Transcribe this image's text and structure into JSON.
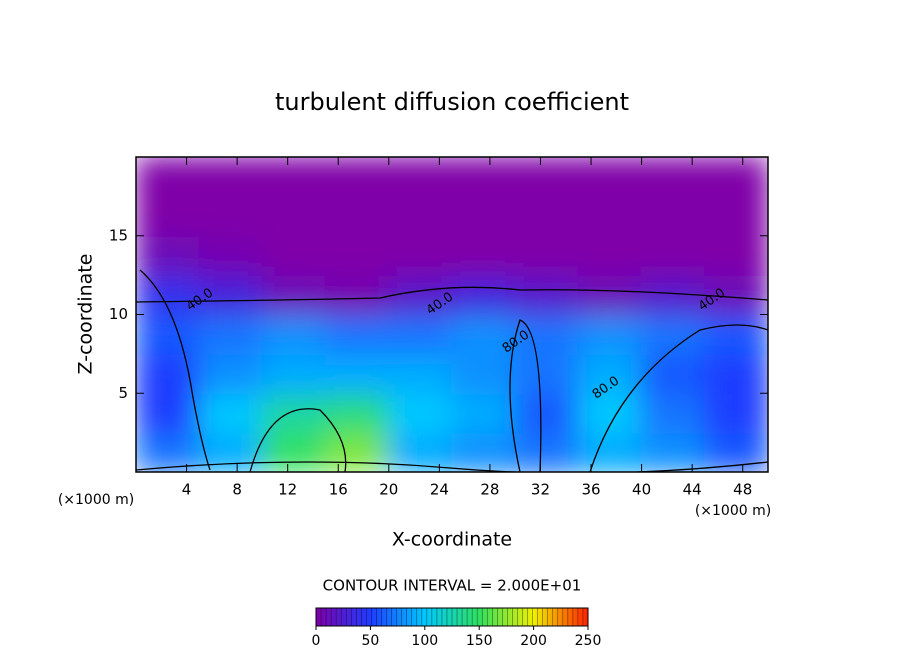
{
  "chart_data": {
    "type": "heatmap",
    "title": "turbulent diffusion coefficient",
    "x_label": "X-coordinate",
    "y_label": "Z-coordinate",
    "x_unit_left": "(×1000 m)",
    "x_unit_right": "(×1000 m)",
    "xlim": [
      0,
      50
    ],
    "xticks": [
      4,
      8,
      12,
      16,
      20,
      24,
      28,
      32,
      36,
      40,
      44,
      48
    ],
    "ylim": [
      0,
      20
    ],
    "yticks": [
      5,
      10,
      15
    ],
    "xbins": [
      0,
      5,
      10,
      15,
      20,
      25,
      30,
      35,
      40,
      45,
      50
    ],
    "ybins": [
      0,
      2.5,
      5,
      7.5,
      10,
      12.5,
      15,
      17.5,
      20
    ],
    "z": [
      [
        70,
        90,
        150,
        170,
        90,
        80,
        70,
        90,
        80,
        60
      ],
      [
        50,
        100,
        130,
        140,
        100,
        90,
        60,
        100,
        70,
        50
      ],
      [
        50,
        80,
        90,
        90,
        90,
        80,
        70,
        90,
        60,
        50
      ],
      [
        60,
        70,
        80,
        70,
        70,
        80,
        70,
        80,
        70,
        60
      ],
      [
        40,
        30,
        10,
        5,
        20,
        30,
        20,
        10,
        20,
        10
      ],
      [
        10,
        5,
        0,
        0,
        0,
        0,
        0,
        0,
        0,
        0
      ],
      [
        0,
        0,
        0,
        0,
        0,
        0,
        0,
        0,
        0,
        0
      ],
      [
        0,
        0,
        0,
        0,
        0,
        0,
        0,
        0,
        0,
        0
      ]
    ],
    "contour_labels": [
      "40.0",
      "40.0",
      "80.0",
      "80.0",
      "40.0"
    ],
    "contour_interval_label": "CONTOUR INTERVAL = 2.000E+01",
    "colormap": [
      "#7f00a8",
      "#1f3cff",
      "#00c8ff",
      "#30e060",
      "#f0f000",
      "#ff2000"
    ],
    "colorbar_lim": [
      0,
      250
    ],
    "colorbar_ticks": [
      0,
      50,
      100,
      150,
      200,
      250
    ]
  }
}
